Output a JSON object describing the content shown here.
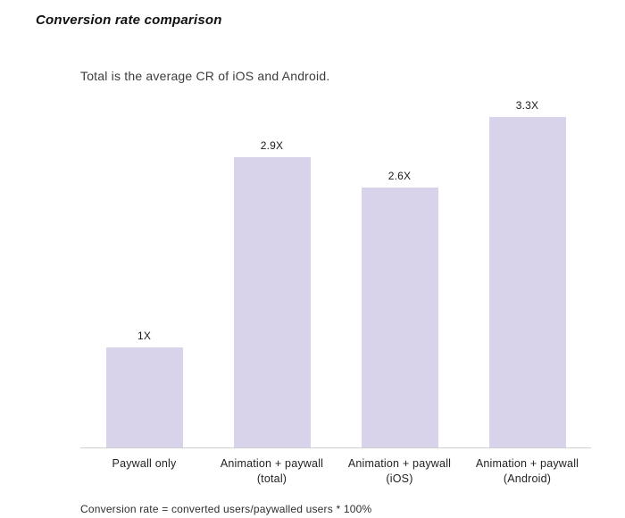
{
  "title": "Conversion rate comparison",
  "subtitle": "Total is the average CR of iOS and Android.",
  "footnote": "Conversion rate = converted users/paywalled users * 100%",
  "colors": {
    "bar": "#d8d2ea",
    "axis": "#cfcfcf",
    "title_text": "#111111",
    "body_text": "#222222"
  },
  "chart_data": {
    "type": "bar",
    "title": "Conversion rate comparison",
    "subtitle": "Total is the average CR of iOS and Android.",
    "categories": [
      "Paywall only",
      "Animation + paywall\n(total)",
      "Animation + paywall\n(iOS)",
      "Animation + paywall\n(Android)"
    ],
    "values": [
      1,
      2.9,
      2.6,
      3.3
    ],
    "value_labels": [
      "1X",
      "2.9X",
      "2.6X",
      "3.3X"
    ],
    "xlabel": "",
    "ylabel": "",
    "ylim": [
      0,
      3.5
    ],
    "grid": false,
    "legend": false,
    "annotation": "Conversion rate = converted users/paywalled users * 100%"
  }
}
